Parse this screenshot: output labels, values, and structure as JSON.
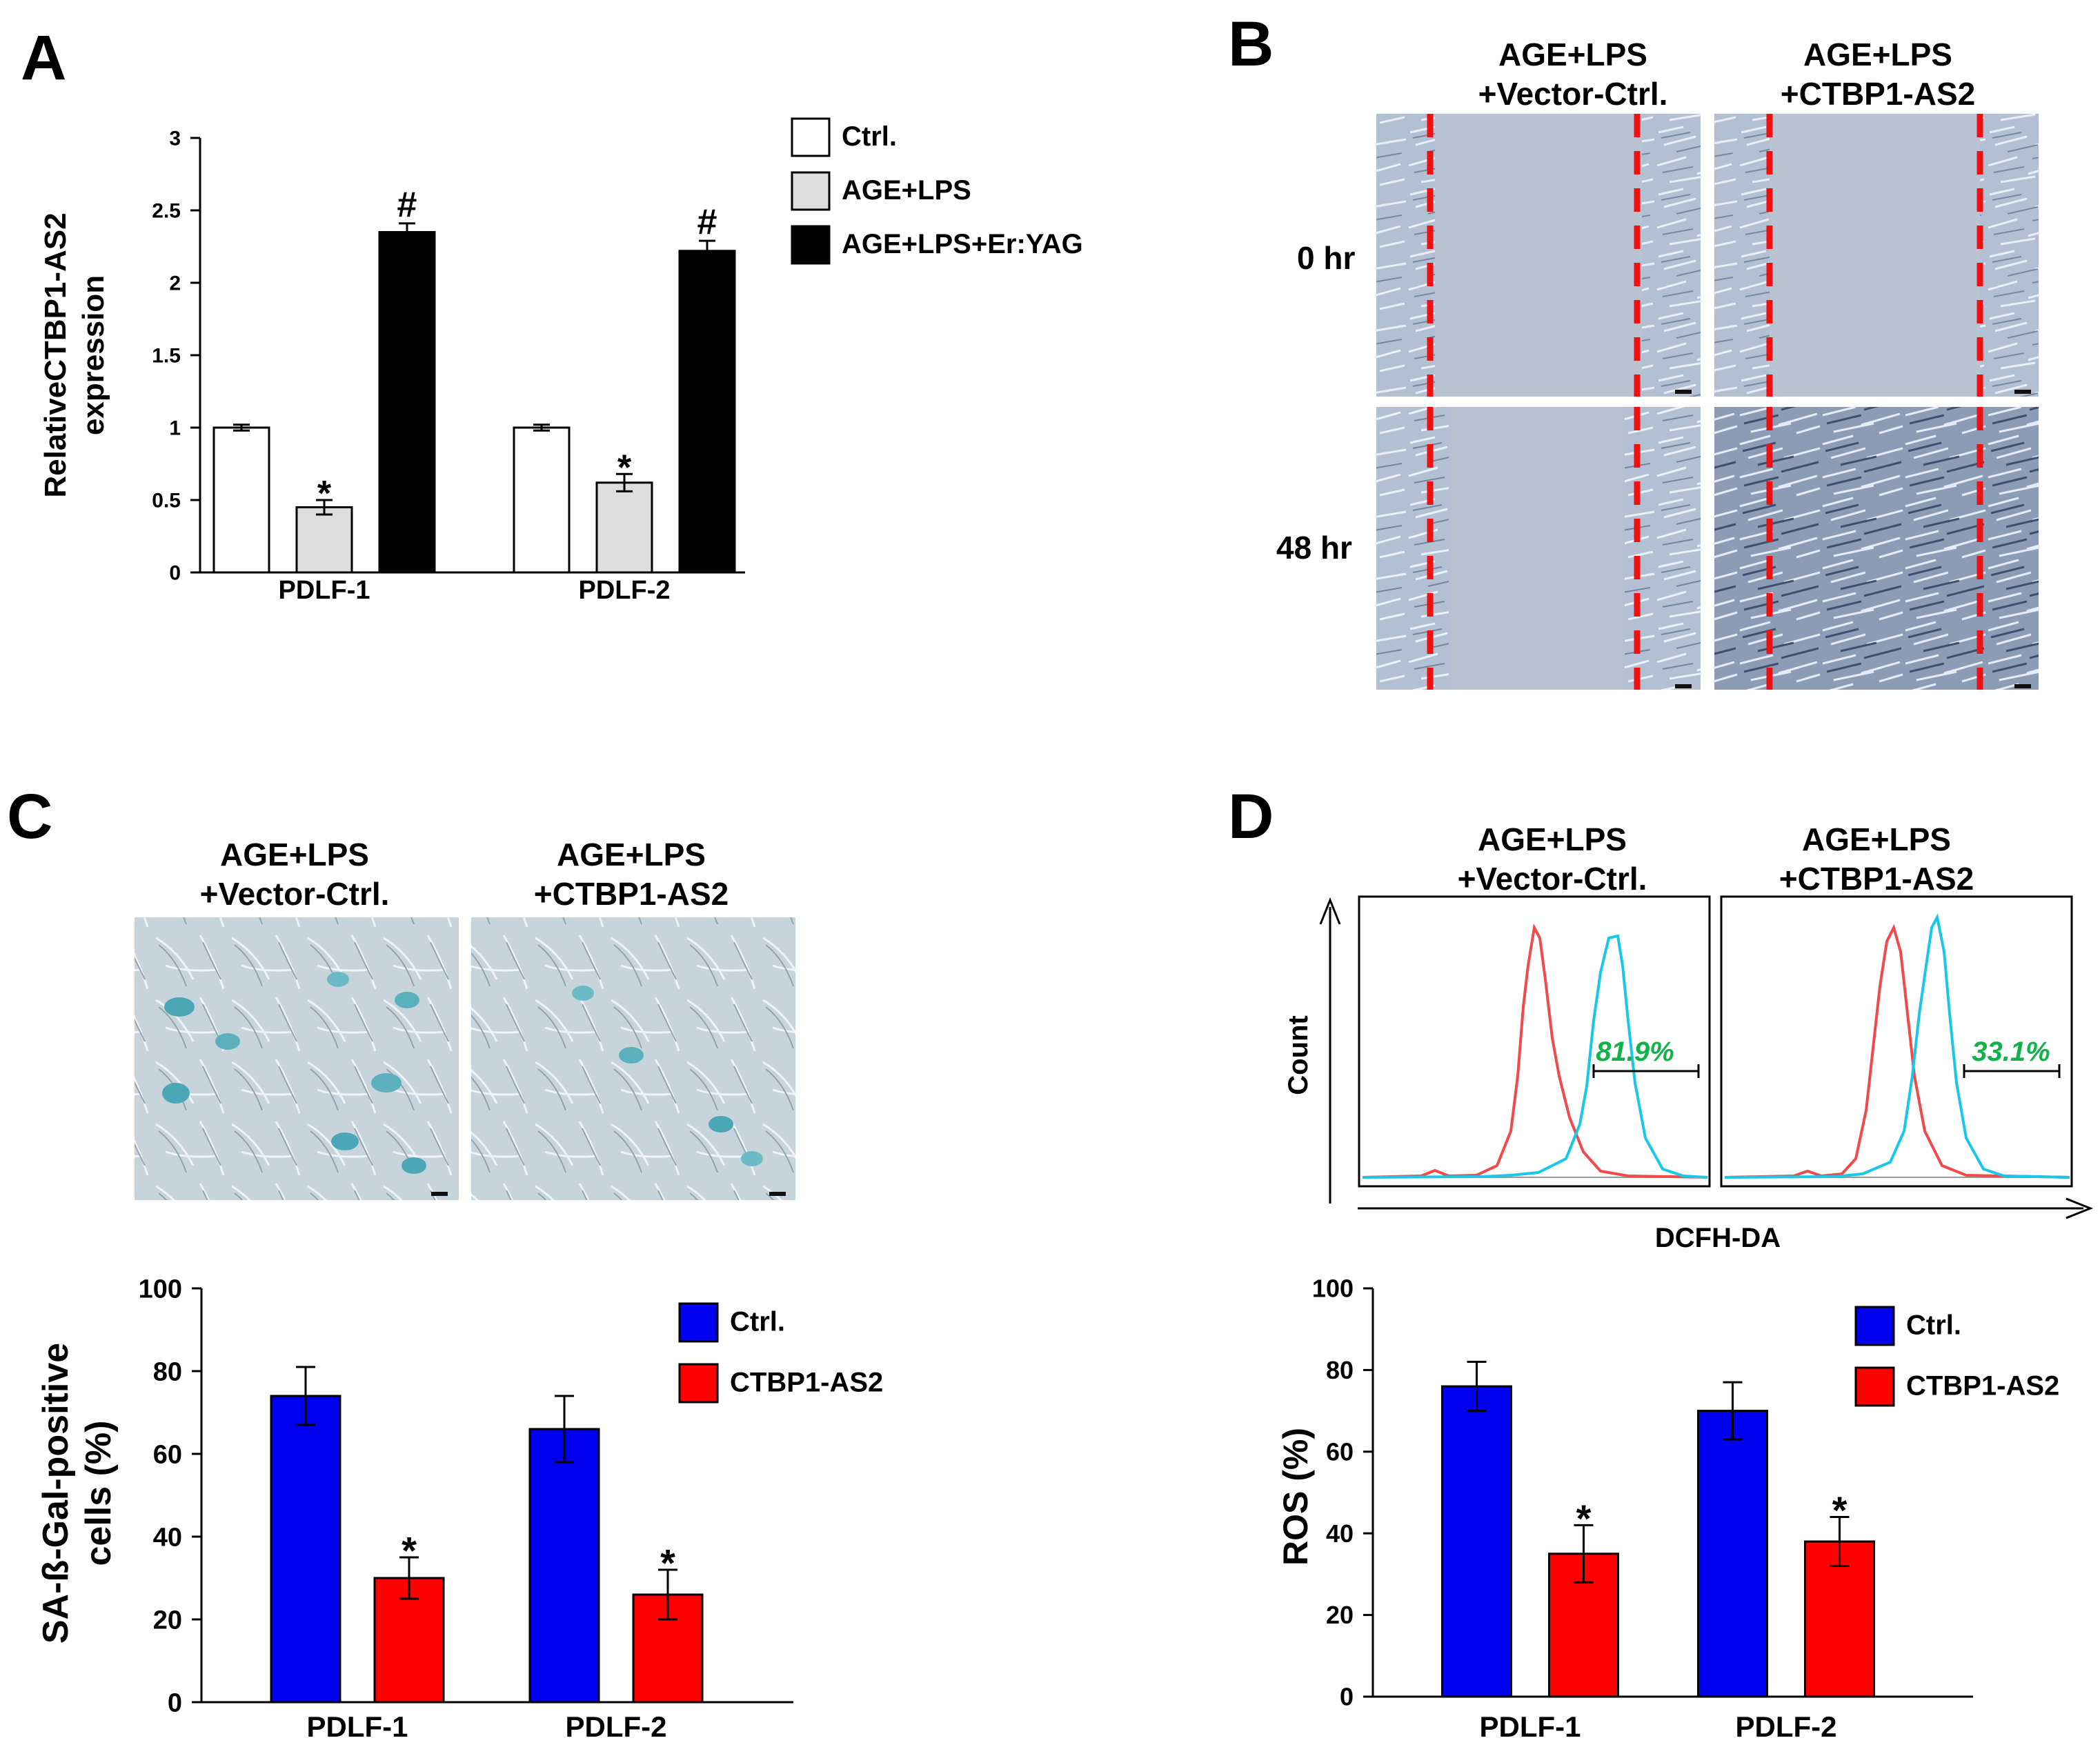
{
  "panel_labels": {
    "a": "A",
    "b": "B",
    "c": "C",
    "d": "D"
  },
  "panelB": {
    "col1": [
      "AGE+LPS",
      "+Vector-Ctrl."
    ],
    "col2": [
      "AGE+LPS",
      "+CTBP1-AS2"
    ],
    "rows": [
      "0 hr",
      "48 hr"
    ]
  },
  "panelC": {
    "col1": [
      "AGE+LPS",
      "+Vector-Ctrl."
    ],
    "col2": [
      "AGE+LPS",
      "+CTBP1-AS2"
    ]
  },
  "panelD": {
    "col1": [
      "AGE+LPS",
      "+Vector-Ctrl."
    ],
    "col2": [
      "AGE+LPS",
      "+CTBP1-AS2"
    ],
    "ylabel": "Count",
    "xlabel": "DCFH-DA",
    "pct1": "81.9%",
    "pct2": "33.1%"
  },
  "colors": {
    "red_line": "#f04a4a",
    "cyan_line": "#18c8e8",
    "pct_green": "#12b24a",
    "blue_bar": "#0000ee",
    "red_bar": "#ff0000",
    "dash_red": "#ee1111"
  },
  "chart_data": [
    {
      "id": "A",
      "type": "bar",
      "categories": [
        "PDLF-1",
        "PDLF-2"
      ],
      "series": [
        {
          "name": "Ctrl.",
          "values": [
            1.0,
            1.0
          ],
          "errors": [
            0.02,
            0.02
          ],
          "color": "#ffffff"
        },
        {
          "name": "AGE+LPS",
          "values": [
            0.45,
            0.62
          ],
          "errors": [
            0.05,
            0.06
          ],
          "color": "#dedede"
        },
        {
          "name": "AGE+LPS+Er:YAG",
          "values": [
            2.35,
            2.22
          ],
          "errors": [
            0.06,
            0.07
          ],
          "color": "#000000"
        }
      ],
      "annotations": [
        [
          "",
          "*",
          "#"
        ],
        [
          "",
          "*",
          "#"
        ]
      ],
      "ylabel_lines": [
        "RelativeCTBP1-AS2",
        "expression"
      ],
      "ylim": [
        0,
        3
      ],
      "yticks": [
        0,
        0.5,
        1,
        1.5,
        2,
        2.5,
        3
      ],
      "ytick_labels": [
        "0",
        "0.5",
        "1",
        "1.5",
        "2",
        "2.5",
        "3"
      ],
      "legend": "top-right"
    },
    {
      "id": "C",
      "type": "bar",
      "categories": [
        "PDLF-1",
        "PDLF-2"
      ],
      "series": [
        {
          "name": "Ctrl.",
          "values": [
            74,
            66
          ],
          "errors": [
            7,
            8
          ],
          "color": "#0000ee"
        },
        {
          "name": "CTBP1-AS2",
          "values": [
            30,
            26
          ],
          "errors": [
            5,
            6
          ],
          "color": "#ff0000"
        }
      ],
      "annotations": [
        [
          "",
          "*"
        ],
        [
          "",
          "*"
        ]
      ],
      "ylabel_lines": [
        "SA-ß-Gal-positive",
        "cells (%)"
      ],
      "ylim": [
        0,
        100
      ],
      "yticks": [
        0,
        20,
        40,
        60,
        80,
        100
      ],
      "ytick_labels": [
        "0",
        "20",
        "40",
        "60",
        "80",
        "100"
      ],
      "legend": "top-right"
    },
    {
      "id": "D",
      "type": "bar",
      "categories": [
        "PDLF-1",
        "PDLF-2"
      ],
      "series": [
        {
          "name": "Ctrl.",
          "values": [
            76,
            70
          ],
          "errors": [
            6,
            7
          ],
          "color": "#0000ee"
        },
        {
          "name": "CTBP1-AS2",
          "values": [
            35,
            38
          ],
          "errors": [
            7,
            6
          ],
          "color": "#ff0000"
        }
      ],
      "annotations": [
        [
          "",
          "*"
        ],
        [
          "",
          "*"
        ]
      ],
      "ylabel_lines": [
        "ROS (%)"
      ],
      "ylim": [
        0,
        100
      ],
      "yticks": [
        0,
        20,
        40,
        60,
        80,
        100
      ],
      "ytick_labels": [
        "0",
        "20",
        "40",
        "60",
        "80",
        "100"
      ],
      "legend": "top-right"
    }
  ]
}
